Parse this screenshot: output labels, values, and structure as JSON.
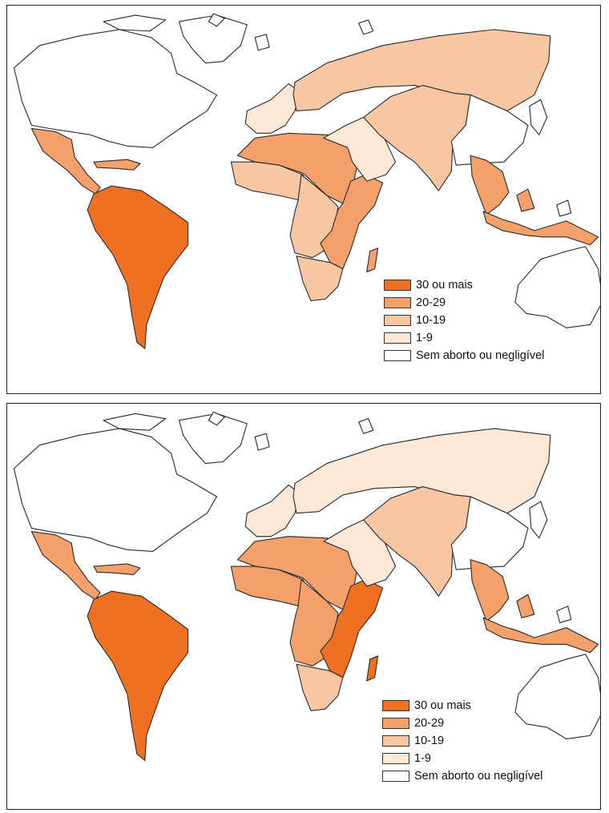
{
  "colors": {
    "30_plus": "#f07022",
    "20_29": "#f4a06a",
    "10_19": "#f7c7a3",
    "1_9": "#fde7d6",
    "none": "#ffffff"
  },
  "legend": [
    {
      "key": "30_plus",
      "label": "30 ou mais"
    },
    {
      "key": "20_29",
      "label": "20-29"
    },
    {
      "key": "10_19",
      "label": "10-19"
    },
    {
      "key": "1_9",
      "label": "1-9"
    },
    {
      "key": "none",
      "label": "Sem aborto ou negligível"
    }
  ],
  "maps": [
    {
      "id": "top",
      "regions": {
        "north_america": "none",
        "greenland": "none",
        "central_america": "20_29",
        "caribbean": "20_29",
        "south_america": "30_plus",
        "europe_west": "1_9",
        "russia_east_europe": "10_19",
        "north_africa": "20_29",
        "west_africa": "10_19",
        "middle_africa": "10_19",
        "east_africa": "20_29",
        "southern_africa": "10_19",
        "madagascar": "20_29",
        "middle_east": "1_9",
        "central_south_asia": "10_19",
        "east_asia": "none",
        "japan": "none",
        "southeast_asia": "20_29",
        "indonesia": "20_29",
        "australia": "none"
      }
    },
    {
      "id": "bottom",
      "regions": {
        "north_america": "none",
        "greenland": "none",
        "central_america": "20_29",
        "caribbean": "20_29",
        "south_america": "30_plus",
        "europe_west": "1_9",
        "russia_east_europe": "1_9",
        "north_africa": "20_29",
        "west_africa": "20_29",
        "middle_africa": "20_29",
        "east_africa": "30_plus",
        "southern_africa": "10_19",
        "madagascar": "30_plus",
        "middle_east": "1_9",
        "central_south_asia": "10_19",
        "east_asia": "none",
        "japan": "none",
        "southeast_asia": "20_29",
        "indonesia": "20_29",
        "australia": "none"
      }
    }
  ]
}
